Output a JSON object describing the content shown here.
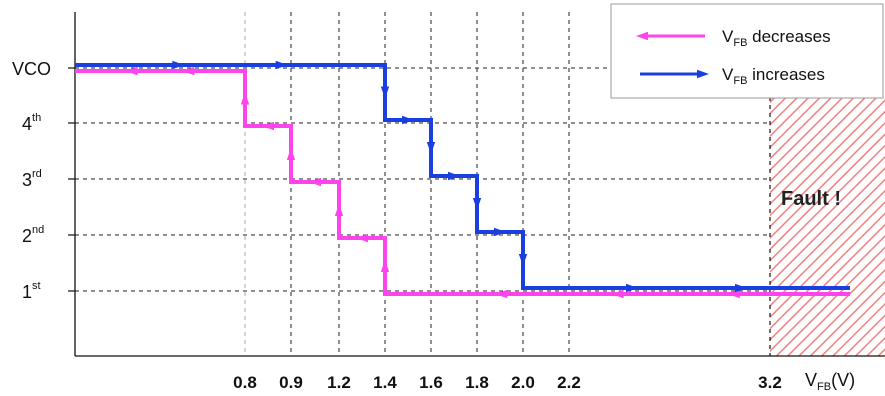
{
  "chart_data": {
    "type": "line",
    "title": "",
    "xlabel": {
      "main": "V",
      "sub": "FB",
      "unit": "(V)"
    },
    "ylabel": "",
    "x_ticks": [
      "0.8",
      "0.9",
      "1.2",
      "1.4",
      "1.6",
      "1.8",
      "2.0",
      "2.2",
      "3.2"
    ],
    "xlim": [
      0,
      4.2
    ],
    "y_levels": [
      {
        "label": "VCO",
        "sup": "",
        "value": 5
      },
      {
        "label": "4",
        "sup": "th",
        "value": 4
      },
      {
        "label": "3",
        "sup": "rd",
        "value": 3
      },
      {
        "label": "2",
        "sup": "nd",
        "value": 2
      },
      {
        "label": "1",
        "sup": "st",
        "value": 1
      }
    ],
    "series": [
      {
        "name_main": "V",
        "name_sub": "FB",
        "name_rest": " decreases",
        "color": "#ff44ee",
        "direction": "decreasing",
        "points": [
          [
            4.0,
            1
          ],
          [
            1.4,
            1
          ],
          [
            1.4,
            2
          ],
          [
            1.2,
            2
          ],
          [
            1.2,
            3
          ],
          [
            0.9,
            3
          ],
          [
            0.9,
            4
          ],
          [
            0.8,
            4
          ],
          [
            0.8,
            5
          ],
          [
            0.0,
            5
          ]
        ]
      },
      {
        "name_main": "V",
        "name_sub": "FB",
        "name_rest": " increases",
        "color": "#1a3fe0",
        "direction": "increasing",
        "points": [
          [
            0.0,
            5
          ],
          [
            1.4,
            5
          ],
          [
            1.4,
            4
          ],
          [
            1.6,
            4
          ],
          [
            1.6,
            3
          ],
          [
            1.8,
            3
          ],
          [
            1.8,
            2
          ],
          [
            2.0,
            2
          ],
          [
            2.0,
            1
          ],
          [
            4.0,
            1
          ]
        ]
      }
    ],
    "fault_region": {
      "x_start": 3.2,
      "label": "Fault !",
      "color": "#f07070"
    },
    "grid": true,
    "legend_position": "top-right"
  }
}
